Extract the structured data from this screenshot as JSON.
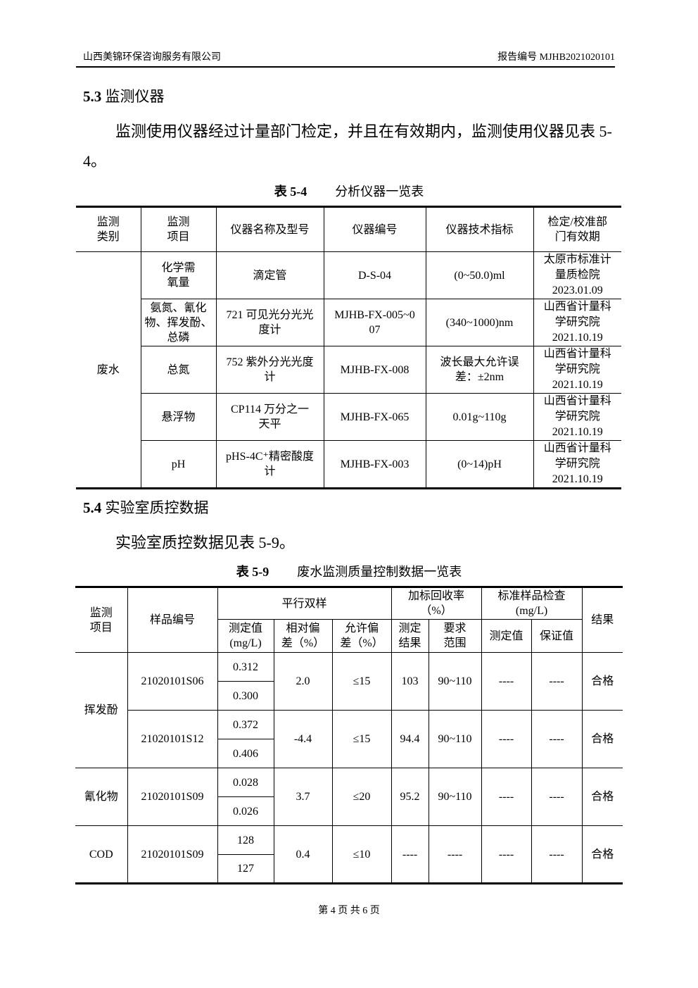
{
  "header": {
    "company": "山西美锦环保咨询服务有限公司",
    "report_no": "报告编号 MJHB2021020101"
  },
  "s53": {
    "num": "5.3",
    "title": "监测仪器",
    "para": "监测使用仪器经过计量部门检定，并且在有效期内，监测使用仪器见表 5-4。"
  },
  "t54": {
    "caption_num": "表 5-4",
    "caption": "分析仪器一览表",
    "headers": [
      "监测\n类别",
      "监测\n项目",
      "仪器名称及型号",
      "仪器编号",
      "仪器技术指标",
      "检定/校准部\n门有效期"
    ],
    "category": "废水",
    "rows": [
      [
        "化学需\n氧量",
        "滴定管",
        "D-S-04",
        "(0~50.0)ml",
        "太原市标准计\n量质检院\n2023.01.09"
      ],
      [
        "氨氮、氰化\n物、挥发酚、\n总磷",
        "721 可见光分光光\n度计",
        "MJHB-FX-005~0\n07",
        "(340~1000)nm",
        "山西省计量科\n学研究院\n2021.10.19"
      ],
      [
        "总氮",
        "752 紫外分光光度\n计",
        "MJHB-FX-008",
        "波长最大允许误\n差：±2nm",
        "山西省计量科\n学研究院\n2021.10.19"
      ],
      [
        "悬浮物",
        "CP114 万分之一\n天平",
        "MJHB-FX-065",
        "0.01g~110g",
        "山西省计量科\n学研究院\n2021.10.19"
      ],
      [
        "pH",
        "pHS-4C⁺精密酸度\n计",
        "MJHB-FX-003",
        "(0~14)pH",
        "山西省计量科\n学研究院\n2021.10.19"
      ]
    ]
  },
  "s54": {
    "num": "5.4",
    "title": "实验室质控数据",
    "para": "实验室质控数据见表 5-9。"
  },
  "t59": {
    "caption_num": "表 5-9",
    "caption": "废水监测质量控制数据一览表",
    "h1": [
      "监测\n项目",
      "样品编号",
      "平行双样",
      "加标回收率\n（%）",
      "标准样品检查\n(mg/L)",
      "结果"
    ],
    "h2": [
      "测定值\n(mg/L)",
      "相对偏\n差（%）",
      "允许偏\n差（%）",
      "测定\n结果",
      "要求\n范围",
      "测定值",
      "保证值"
    ],
    "groups": [
      {
        "item": "挥发酚",
        "samples": [
          {
            "id": "21020101S06",
            "values": [
              "0.312",
              "0.300"
            ],
            "rel": "2.0",
            "allow": "≤15",
            "rec": "103",
            "range": "90~110",
            "std_meas": "----",
            "std_guar": "----",
            "result": "合格"
          },
          {
            "id": "21020101S12",
            "values": [
              "0.372",
              "0.406"
            ],
            "rel": "-4.4",
            "allow": "≤15",
            "rec": "94.4",
            "range": "90~110",
            "std_meas": "----",
            "std_guar": "----",
            "result": "合格"
          }
        ]
      },
      {
        "item": "氰化物",
        "samples": [
          {
            "id": "21020101S09",
            "values": [
              "0.028",
              "0.026"
            ],
            "rel": "3.7",
            "allow": "≤20",
            "rec": "95.2",
            "range": "90~110",
            "std_meas": "----",
            "std_guar": "----",
            "result": "合格"
          }
        ]
      },
      {
        "item": "COD",
        "samples": [
          {
            "id": "21020101S09",
            "values": [
              "128",
              "127"
            ],
            "rel": "0.4",
            "allow": "≤10",
            "rec": "----",
            "range": "----",
            "std_meas": "----",
            "std_guar": "----",
            "result": "合格"
          }
        ]
      }
    ]
  },
  "footer": {
    "text": "第 4 页 共 6 页"
  }
}
